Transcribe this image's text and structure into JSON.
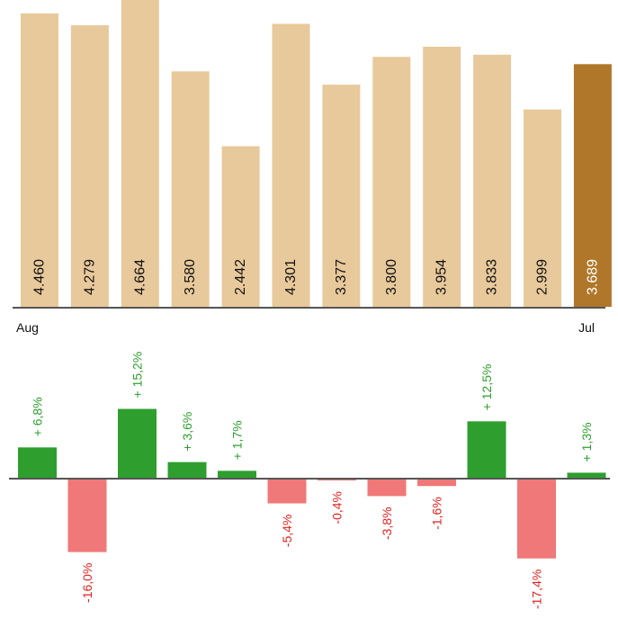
{
  "chart_data": [
    {
      "type": "bar",
      "categories": [
        "Aug",
        "",
        "",
        "",
        "",
        "",
        "",
        "",
        "",
        "",
        "",
        "Jul"
      ],
      "values": [
        4.46,
        4.279,
        4.664,
        3.58,
        2.442,
        4.301,
        3.377,
        3.8,
        3.954,
        3.833,
        2.999,
        3.689
      ],
      "value_labels": [
        "4.460",
        "4.279",
        "4.664",
        "3.580",
        "2.442",
        "4.301",
        "3.377",
        "3.800",
        "3.954",
        "3.833",
        "2.999",
        "3.689"
      ],
      "x_axis_labels": {
        "first": "Aug",
        "last": "Jul"
      },
      "ylim": [
        0,
        4.664
      ],
      "highlight_index": 11,
      "colors": {
        "bar": "#E8C99B",
        "highlight": "#B0772A",
        "label": "#111111",
        "highlight_label": "#ffffff"
      }
    },
    {
      "type": "bar",
      "values": [
        6.8,
        -16.0,
        15.2,
        3.6,
        1.7,
        -5.4,
        -0.4,
        -3.8,
        -1.6,
        12.5,
        -17.4,
        1.3
      ],
      "value_labels": [
        "+ 6,8%",
        "-16,0%",
        "+ 15,2%",
        "+ 3,6%",
        "+ 1,7%",
        "-5,4%",
        "-0,4%",
        "-3,8%",
        "-1,6%",
        "+ 12,5%",
        "-17,4%",
        "+ 1,3%"
      ],
      "ylim": [
        -17.4,
        15.2
      ],
      "colors": {
        "positive": "#2E9E2E",
        "negative": "#F07878",
        "positive_text": "#2E9E2E",
        "negative_text": "#E0201E",
        "axis": "#555555"
      }
    }
  ]
}
